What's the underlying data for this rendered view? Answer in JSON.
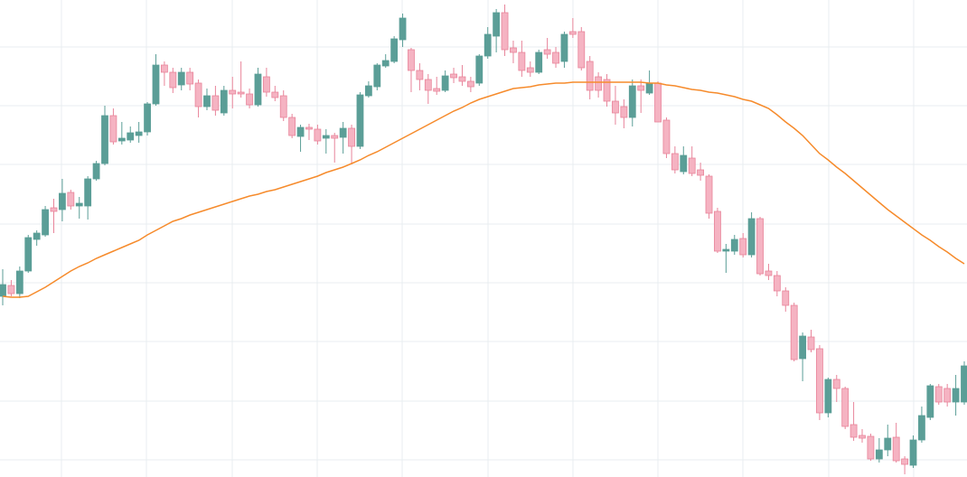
{
  "chart_data": {
    "type": "candlestick",
    "categories": [
      null,
      null,
      null,
      null,
      null,
      null,
      null,
      null,
      null,
      null,
      null,
      null,
      null,
      null,
      null,
      null,
      null,
      null,
      null,
      null,
      null,
      null,
      null,
      null,
      null,
      null,
      null,
      null,
      null,
      null,
      null,
      null,
      null,
      null,
      null,
      null,
      null,
      null,
      null,
      null,
      null,
      null,
      null,
      null,
      null,
      null,
      null,
      null,
      null,
      null,
      null,
      null,
      null,
      null,
      null,
      null,
      null,
      null,
      null,
      null,
      null,
      null,
      null,
      null,
      null,
      null,
      null,
      null,
      null,
      null,
      null,
      null,
      null,
      null,
      null,
      null,
      null,
      null,
      null,
      null,
      null,
      null,
      null,
      null,
      null,
      null,
      null,
      null,
      null,
      null,
      null,
      null,
      null,
      null,
      null,
      null,
      null,
      null,
      null,
      null,
      null,
      null,
      null,
      null,
      null,
      null,
      null,
      null,
      null,
      null,
      null,
      null,
      null,
      null
    ],
    "ylim": [
      -19,
      509
    ],
    "yticks": [
      0,
      65,
      131,
      196,
      261,
      327,
      392,
      457
    ],
    "grid": true,
    "series": [
      {
        "type": "candlestick",
        "up_color": "#5b9e97",
        "down_color": "#f5b3c2",
        "down_stroke": "#e8849a",
        "open": [
          181,
          193,
          184,
          209,
          244,
          249,
          279,
          277,
          296,
          281,
          281,
          311,
          328,
          381,
          353,
          354,
          359,
          363,
          394,
          437,
          429,
          415,
          429,
          417,
          391,
          403,
          384,
          409,
          407,
          405,
          393,
          424,
          407,
          403,
          379,
          358,
          368,
          366,
          356,
          359,
          357,
          367,
          347,
          403,
          413,
          436,
          441,
          465,
          454,
          431,
          421,
          411,
          409,
          427,
          424,
          419,
          417,
          447,
          469,
          495,
          456,
          451,
          434,
          429,
          454,
          451,
          441,
          474,
          474,
          441,
          424,
          421,
          397,
          391,
          379,
          414,
          406,
          417,
          376,
          339,
          319,
          334,
          321,
          314,
          275,
          231,
          231,
          245,
          227,
          267,
          209,
          204,
          187,
          171,
          112,
          136,
          123,
          52,
          89,
          79,
          39,
          27,
          26,
          1,
          11,
          25,
          1,
          -6,
          22,
          47,
          81,
          79,
          64,
          64
        ],
        "high": [
          211,
          199,
          214,
          249,
          254,
          281,
          289,
          311,
          299,
          291,
          314,
          331,
          392,
          389,
          374,
          369,
          374,
          396,
          449,
          441,
          434,
          434,
          434,
          421,
          411,
          414,
          414,
          424,
          441,
          411,
          434,
          434,
          414,
          409,
          383,
          371,
          372,
          371,
          366,
          362,
          374,
          371,
          407,
          419,
          439,
          449,
          469,
          494,
          456,
          439,
          427,
          424,
          431,
          434,
          437,
          424,
          449,
          479,
          499,
          504,
          464,
          464,
          441,
          454,
          467,
          457,
          474,
          489,
          479,
          447,
          429,
          427,
          414,
          399,
          421,
          421,
          431,
          419,
          379,
          347,
          347,
          347,
          329,
          316,
          279,
          239,
          249,
          251,
          274,
          269,
          217,
          209,
          191,
          174,
          141,
          144,
          127,
          91,
          94,
          81,
          64,
          34,
          29,
          24,
          39,
          41,
          4,
          27,
          59,
          84,
          84,
          84,
          94,
          109
        ],
        "low": [
          171,
          181,
          179,
          207,
          237,
          247,
          251,
          264,
          277,
          267,
          266,
          309,
          326,
          349,
          349,
          351,
          351,
          359,
          392,
          414,
          406,
          409,
          409,
          379,
          387,
          381,
          381,
          389,
          401,
          389,
          391,
          402,
          397,
          375,
          356,
          341,
          354,
          349,
          339,
          329,
          339,
          327,
          344,
          401,
          409,
          434,
          439,
          457,
          407,
          409,
          394,
          404,
          407,
          417,
          414,
          407,
          414,
          444,
          451,
          447,
          439,
          424,
          424,
          427,
          444,
          434,
          434,
          467,
          431,
          399,
          401,
          391,
          371,
          367,
          369,
          384,
          404,
          374,
          334,
          317,
          316,
          314,
          309,
          267,
          229,
          207,
          227,
          224,
          224,
          204,
          199,
          181,
          164,
          109,
          87,
          119,
          44,
          47,
          64,
          34,
          21,
          19,
          -1,
          -3,
          4,
          -3,
          -16,
          -9,
          19,
          44,
          61,
          59,
          49,
          61
        ],
        "close": [
          194,
          184,
          209,
          246,
          251,
          277,
          275,
          295,
          281,
          284,
          311,
          328,
          381,
          352,
          356,
          362,
          363,
          394,
          437,
          429,
          412,
          429,
          416,
          391,
          403,
          387,
          409,
          405,
          405,
          393,
          427,
          407,
          401,
          379,
          359,
          368,
          366,
          353,
          359,
          356,
          367,
          347,
          404,
          414,
          437,
          442,
          466,
          489,
          431,
          421,
          409,
          408,
          425,
          423,
          419,
          413,
          447,
          471,
          495,
          454,
          451,
          431,
          429,
          451,
          449,
          439,
          471,
          471,
          434,
          409,
          409,
          397,
          384,
          379,
          414,
          409,
          417,
          374,
          339,
          321,
          337,
          317,
          315,
          273,
          231,
          233,
          244,
          227,
          267,
          206,
          204,
          187,
          171,
          111,
          137,
          122,
          52,
          89,
          79,
          37,
          25,
          24,
          1,
          11,
          24,
          -1,
          -5,
          22,
          49,
          82,
          64,
          64,
          79,
          104
        ]
      },
      {
        "type": "line",
        "color": "#f68b2c",
        "values": [
          181,
          180,
          180,
          181,
          186,
          191,
          197,
          203,
          209,
          214,
          218,
          223,
          227,
          231,
          235,
          239,
          243,
          249,
          254,
          259,
          264,
          267,
          271,
          274,
          277,
          280,
          283,
          286,
          289,
          292,
          294,
          297,
          299,
          302,
          305,
          308,
          311,
          314,
          318,
          321,
          324,
          328,
          332,
          337,
          341,
          346,
          351,
          356,
          361,
          366,
          371,
          376,
          381,
          386,
          390,
          395,
          399,
          402,
          405,
          408,
          411,
          412,
          413,
          415,
          416,
          417,
          417,
          418,
          418,
          418,
          418,
          418,
          418,
          418,
          418,
          418,
          417,
          417,
          415,
          414,
          412,
          410,
          409,
          407,
          406,
          404,
          402,
          399,
          397,
          393,
          389,
          382,
          374,
          367,
          359,
          349,
          339,
          332,
          324,
          317,
          309,
          301,
          293,
          285,
          277,
          270,
          263,
          256,
          249,
          243,
          236,
          230,
          223,
          217
        ]
      }
    ]
  }
}
